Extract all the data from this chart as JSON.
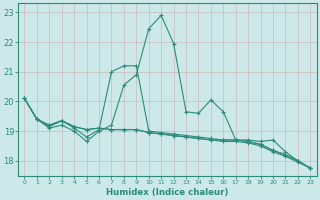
{
  "xlabel": "Humidex (Indice chaleur)",
  "background_color": "#cce8e8",
  "grid_color": "#b0d0d0",
  "line_color": "#2e8b7a",
  "xlim": [
    -0.5,
    23.5
  ],
  "ylim": [
    17.5,
    23.3
  ],
  "yticks": [
    18,
    19,
    20,
    21,
    22,
    23
  ],
  "xticks": [
    0,
    1,
    2,
    3,
    4,
    5,
    6,
    7,
    8,
    9,
    10,
    11,
    12,
    13,
    14,
    15,
    16,
    17,
    18,
    19,
    20,
    21,
    22,
    23
  ],
  "lines": [
    {
      "x": [
        0,
        1,
        2,
        3,
        4,
        5,
        6,
        7,
        8,
        9,
        10,
        11,
        12,
        13,
        14,
        15,
        16,
        17,
        18,
        19,
        20,
        21,
        22,
        23
      ],
      "y": [
        20.1,
        19.4,
        19.1,
        19.2,
        19.0,
        18.65,
        19.0,
        19.2,
        20.55,
        20.9,
        22.45,
        22.9,
        21.95,
        19.65,
        19.6,
        20.05,
        19.65,
        18.7,
        18.7,
        18.65,
        18.7,
        18.3,
        18.0,
        17.75
      ]
    },
    {
      "x": [
        0,
        1,
        2,
        3,
        4,
        5,
        6,
        7,
        8,
        9,
        10,
        11,
        12,
        13,
        14,
        15,
        16,
        17,
        18,
        19,
        20,
        21,
        22,
        23
      ],
      "y": [
        20.1,
        19.4,
        19.15,
        19.35,
        19.1,
        18.8,
        19.05,
        21.0,
        21.2,
        21.2,
        19.0,
        18.95,
        18.9,
        18.85,
        18.8,
        18.75,
        18.7,
        18.7,
        18.65,
        18.55,
        18.35,
        18.2,
        18.0,
        17.75
      ]
    },
    {
      "x": [
        0,
        1,
        2,
        3,
        4,
        5,
        6,
        7,
        8,
        9,
        10,
        11,
        12,
        13,
        14,
        15,
        16,
        17,
        18,
        19,
        20,
        21,
        22,
        23
      ],
      "y": [
        20.1,
        19.4,
        19.2,
        19.35,
        19.15,
        19.05,
        19.1,
        19.05,
        19.05,
        19.05,
        18.95,
        18.9,
        18.85,
        18.8,
        18.75,
        18.7,
        18.7,
        18.7,
        18.65,
        18.55,
        18.35,
        18.2,
        18.0,
        17.75
      ]
    },
    {
      "x": [
        0,
        1,
        2,
        3,
        4,
        5,
        6,
        7,
        8,
        9,
        10,
        11,
        12,
        13,
        14,
        15,
        16,
        17,
        18,
        19,
        20,
        21,
        22,
        23
      ],
      "y": [
        20.1,
        19.4,
        19.2,
        19.35,
        19.15,
        19.05,
        19.1,
        19.05,
        19.05,
        19.05,
        18.95,
        18.9,
        18.85,
        18.8,
        18.75,
        18.7,
        18.65,
        18.65,
        18.6,
        18.5,
        18.3,
        18.15,
        17.95,
        17.75
      ]
    }
  ]
}
